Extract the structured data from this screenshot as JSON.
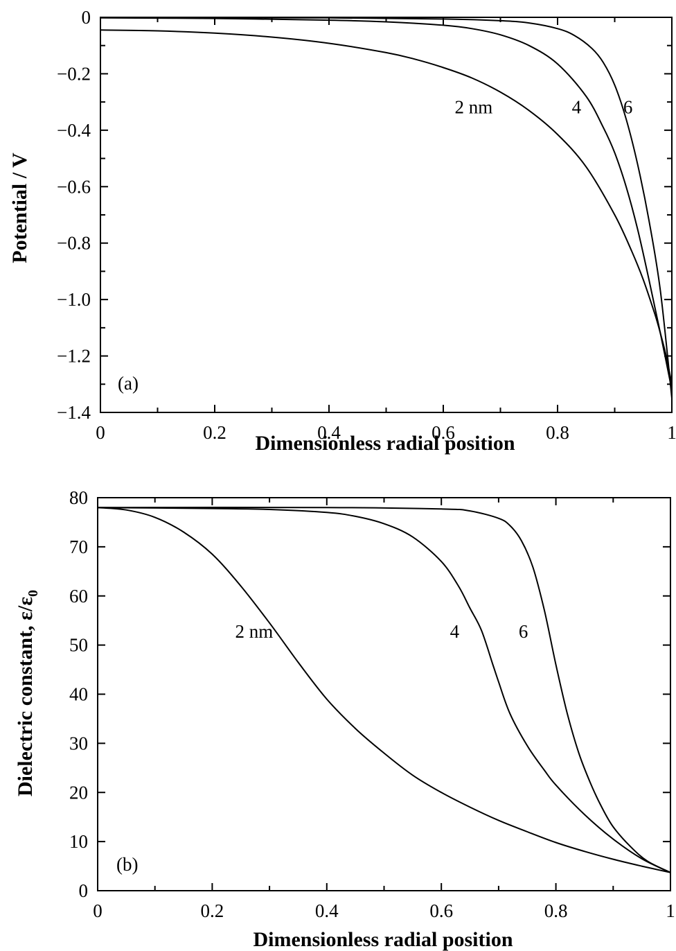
{
  "chart_data": [
    {
      "type": "line",
      "panel_label": "(a)",
      "xlabel": "Dimensionless radial position",
      "ylabel": "Potential / V",
      "xlim": [
        0,
        1
      ],
      "ylim": [
        -1.4,
        0
      ],
      "x_ticks": [
        0,
        0.1,
        0.2,
        0.3,
        0.4,
        0.5,
        0.6,
        0.7,
        0.8,
        0.9,
        1.0
      ],
      "x_tick_labels": [
        "0",
        "",
        "0.2",
        "",
        "0.4",
        "",
        "0.6",
        "",
        "0.8",
        "",
        "1"
      ],
      "y_ticks": [
        0,
        -0.1,
        -0.2,
        -0.3,
        -0.4,
        -0.5,
        -0.6,
        -0.7,
        -0.8,
        -0.9,
        -1.0,
        -1.1,
        -1.2,
        -1.3,
        -1.4
      ],
      "y_tick_labels": [
        "0",
        "",
        "−0.2",
        "",
        "−0.4",
        "",
        "−0.6",
        "",
        "−0.8",
        "",
        "−1.0",
        "",
        "−1.2",
        "",
        "−1.4"
      ],
      "grid": false,
      "series": [
        {
          "name": "2 nm",
          "x": [
            0,
            0.1,
            0.2,
            0.3,
            0.4,
            0.5,
            0.55,
            0.6,
            0.65,
            0.7,
            0.75,
            0.8,
            0.85,
            0.9,
            0.93,
            0.95,
            0.97,
            0.98,
            0.99,
            1.0
          ],
          "y": [
            -0.045,
            -0.048,
            -0.056,
            -0.07,
            -0.092,
            -0.125,
            -0.148,
            -0.178,
            -0.215,
            -0.265,
            -0.33,
            -0.415,
            -0.53,
            -0.7,
            -0.83,
            -0.93,
            -1.05,
            -1.12,
            -1.2,
            -1.3
          ]
        },
        {
          "name": "4",
          "x": [
            0,
            0.2,
            0.4,
            0.5,
            0.6,
            0.65,
            0.7,
            0.75,
            0.8,
            0.85,
            0.88,
            0.9,
            0.92,
            0.94,
            0.96,
            0.98,
            1.0
          ],
          "y": [
            -0.002,
            -0.004,
            -0.01,
            -0.016,
            -0.028,
            -0.04,
            -0.062,
            -0.1,
            -0.165,
            -0.28,
            -0.39,
            -0.48,
            -0.6,
            -0.75,
            -0.93,
            -1.12,
            -1.32
          ]
        },
        {
          "name": "6",
          "x": [
            0,
            0.2,
            0.4,
            0.6,
            0.7,
            0.75,
            0.8,
            0.83,
            0.86,
            0.88,
            0.9,
            0.92,
            0.94,
            0.96,
            0.98,
            1.0
          ],
          "y": [
            0.0,
            -0.001,
            -0.002,
            -0.006,
            -0.012,
            -0.02,
            -0.04,
            -0.065,
            -0.11,
            -0.16,
            -0.24,
            -0.36,
            -0.52,
            -0.72,
            -0.97,
            -1.35
          ]
        }
      ],
      "annotations": [
        {
          "text": "2 nm",
          "x": 0.62,
          "y": -0.34
        },
        {
          "text": "4",
          "x": 0.825,
          "y": -0.34
        },
        {
          "text": "6",
          "x": 0.915,
          "y": -0.34
        }
      ]
    },
    {
      "type": "line",
      "panel_label": "(b)",
      "xlabel": "Dimensionless radial position",
      "ylabel": "Dielectric constant, ε/ε",
      "ylabel_subscript": "0",
      "xlim": [
        0,
        1
      ],
      "ylim": [
        0,
        80
      ],
      "x_ticks": [
        0,
        0.1,
        0.2,
        0.3,
        0.4,
        0.5,
        0.6,
        0.7,
        0.8,
        0.9,
        1.0
      ],
      "x_tick_labels": [
        "0",
        "",
        "0.2",
        "",
        "0.4",
        "",
        "0.6",
        "",
        "0.8",
        "",
        "1"
      ],
      "y_ticks": [
        0,
        10,
        20,
        30,
        40,
        50,
        60,
        70,
        80
      ],
      "y_tick_labels": [
        "0",
        "10",
        "20",
        "30",
        "40",
        "50",
        "60",
        "70",
        "80"
      ],
      "grid": false,
      "series": [
        {
          "name": "2 nm",
          "x": [
            0,
            0.05,
            0.1,
            0.15,
            0.2,
            0.25,
            0.3,
            0.35,
            0.4,
            0.45,
            0.5,
            0.55,
            0.6,
            0.65,
            0.7,
            0.75,
            0.8,
            0.85,
            0.9,
            0.95,
            1.0
          ],
          "y": [
            78,
            77.5,
            76,
            73,
            68.5,
            62,
            54.5,
            46.5,
            39,
            33,
            28,
            23.5,
            20,
            17,
            14.3,
            12,
            9.8,
            8,
            6.4,
            5,
            3.7
          ]
        },
        {
          "name": "4",
          "x": [
            0,
            0.2,
            0.3,
            0.4,
            0.45,
            0.5,
            0.55,
            0.6,
            0.63,
            0.65,
            0.67,
            0.69,
            0.7,
            0.72,
            0.75,
            0.78,
            0.8,
            0.85,
            0.9,
            0.95,
            1.0
          ],
          "y": [
            78,
            77.8,
            77.6,
            77,
            76.2,
            74.7,
            72,
            67,
            62,
            57.5,
            53,
            46,
            42.5,
            36,
            29.5,
            24.5,
            21.5,
            15.5,
            10.5,
            6.5,
            3.7
          ]
        },
        {
          "name": "6",
          "x": [
            0,
            0.4,
            0.6,
            0.65,
            0.7,
            0.72,
            0.74,
            0.76,
            0.78,
            0.8,
            0.82,
            0.84,
            0.86,
            0.88,
            0.9,
            0.93,
            0.96,
            1.0
          ],
          "y": [
            78,
            78,
            77.7,
            77.3,
            75.8,
            74.3,
            71.2,
            65.8,
            57,
            46,
            36,
            28,
            22,
            17,
            13,
            9,
            6,
            3.7
          ]
        }
      ],
      "annotations": [
        {
          "text": "2 nm",
          "x": 0.24,
          "y": 51.5
        },
        {
          "text": "4",
          "x": 0.615,
          "y": 51.5
        },
        {
          "text": "6",
          "x": 0.735,
          "y": 51.5
        }
      ]
    }
  ]
}
